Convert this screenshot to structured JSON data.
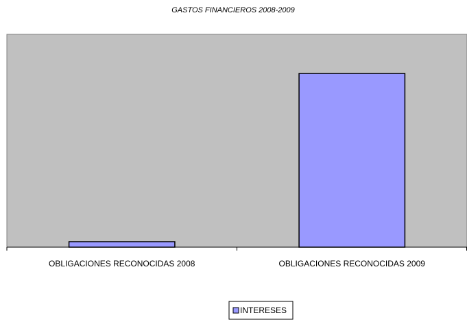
{
  "chart_data": {
    "type": "bar",
    "title": "GASTOS FINANCIEROS 2008-2009",
    "categories": [
      "OBLIGACIONES RECONOCIDAS 2008",
      "OBLIGACIONES RECONOCIDAS 2009"
    ],
    "series": [
      {
        "name": "INTERESES",
        "color": "#9999ff",
        "values": [
          8,
          253
        ]
      }
    ],
    "ylim": [
      0,
      310
    ],
    "legend": "bottom"
  }
}
